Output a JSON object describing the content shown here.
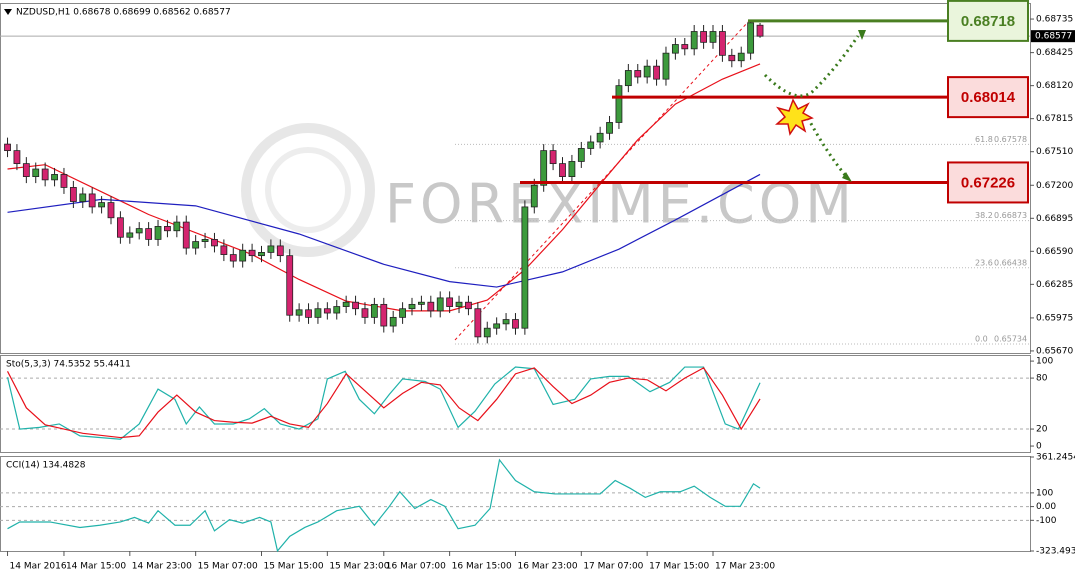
{
  "chart_data": [
    {
      "type": "candlestick",
      "title": "NZDUSD,H1  0.68678 0.68699 0.68562 0.68577",
      "watermark": "FOREXIME.COM",
      "up_color": "#3c9a3c",
      "down_color": "#d4246f",
      "open": [
        0.6758,
        0.6752,
        0.674,
        0.6728,
        0.6735,
        0.6725,
        0.673,
        0.6718,
        0.6705,
        0.6712,
        0.67,
        0.6704,
        0.669,
        0.6672,
        0.6676,
        0.668,
        0.667,
        0.6682,
        0.6678,
        0.6686,
        0.6662,
        0.6668,
        0.667,
        0.6664,
        0.6656,
        0.665,
        0.666,
        0.6655,
        0.6658,
        0.6664,
        0.6655,
        0.66,
        0.6605,
        0.6598,
        0.6606,
        0.6602,
        0.6608,
        0.6612,
        0.6606,
        0.6598,
        0.661,
        0.659,
        0.6598,
        0.6606,
        0.661,
        0.6612,
        0.6604,
        0.6616,
        0.6608,
        0.6612,
        0.6606,
        0.658,
        0.6588,
        0.6592,
        0.6596,
        0.6588,
        0.67,
        0.672,
        0.6752,
        0.674,
        0.6728,
        0.6742,
        0.6754,
        0.676,
        0.6768,
        0.6778,
        0.6812,
        0.6826,
        0.682,
        0.683,
        0.6818,
        0.6842,
        0.685,
        0.6846,
        0.6862,
        0.6852,
        0.6862,
        0.684,
        0.6835,
        0.6842,
        0.68678
      ],
      "high": [
        0.6764,
        0.6758,
        0.6746,
        0.6741,
        0.6741,
        0.6736,
        0.6736,
        0.6724,
        0.6718,
        0.6718,
        0.671,
        0.671,
        0.6696,
        0.6682,
        0.6686,
        0.6686,
        0.6688,
        0.6688,
        0.6692,
        0.6692,
        0.6674,
        0.6676,
        0.6676,
        0.667,
        0.6662,
        0.6666,
        0.6666,
        0.6664,
        0.667,
        0.667,
        0.6661,
        0.6611,
        0.6611,
        0.6612,
        0.6612,
        0.6614,
        0.6618,
        0.6618,
        0.6612,
        0.6616,
        0.6616,
        0.6604,
        0.6612,
        0.6616,
        0.6618,
        0.6618,
        0.6622,
        0.6622,
        0.6618,
        0.6618,
        0.6612,
        0.6594,
        0.6598,
        0.6602,
        0.6602,
        0.6706,
        0.6726,
        0.6758,
        0.6758,
        0.6746,
        0.6748,
        0.676,
        0.6766,
        0.6774,
        0.6784,
        0.6818,
        0.6832,
        0.6832,
        0.6836,
        0.6836,
        0.6848,
        0.6856,
        0.6856,
        0.6868,
        0.6868,
        0.6868,
        0.6868,
        0.6846,
        0.6848,
        0.68718,
        0.68699
      ],
      "low": [
        0.6746,
        0.6734,
        0.6722,
        0.6722,
        0.6719,
        0.6719,
        0.6712,
        0.6699,
        0.6699,
        0.6694,
        0.6694,
        0.6684,
        0.6666,
        0.6666,
        0.667,
        0.6664,
        0.6664,
        0.6672,
        0.6672,
        0.6656,
        0.6656,
        0.6662,
        0.6658,
        0.665,
        0.6644,
        0.6644,
        0.6649,
        0.6649,
        0.6652,
        0.6649,
        0.6594,
        0.6594,
        0.6592,
        0.6592,
        0.6596,
        0.6596,
        0.6602,
        0.66,
        0.6592,
        0.6592,
        0.6584,
        0.6584,
        0.6592,
        0.66,
        0.6604,
        0.6598,
        0.6598,
        0.6602,
        0.6602,
        0.66,
        0.6574,
        0.6574,
        0.6582,
        0.6586,
        0.6582,
        0.6582,
        0.6694,
        0.6714,
        0.6734,
        0.6722,
        0.6722,
        0.6736,
        0.6748,
        0.6754,
        0.6762,
        0.6772,
        0.6806,
        0.6814,
        0.6814,
        0.6812,
        0.6812,
        0.6836,
        0.684,
        0.684,
        0.6846,
        0.6846,
        0.6834,
        0.6829,
        0.6829,
        0.6836,
        0.68562
      ],
      "close": [
        0.6752,
        0.674,
        0.6728,
        0.6735,
        0.6725,
        0.673,
        0.6718,
        0.6705,
        0.6712,
        0.67,
        0.6704,
        0.669,
        0.6672,
        0.6676,
        0.668,
        0.667,
        0.6682,
        0.6678,
        0.6686,
        0.6662,
        0.6668,
        0.667,
        0.6664,
        0.6656,
        0.665,
        0.666,
        0.6655,
        0.6658,
        0.6664,
        0.6655,
        0.66,
        0.6605,
        0.6598,
        0.6606,
        0.6602,
        0.6608,
        0.6612,
        0.6606,
        0.6598,
        0.661,
        0.659,
        0.6598,
        0.6606,
        0.661,
        0.6612,
        0.6604,
        0.6616,
        0.6608,
        0.6612,
        0.6606,
        0.658,
        0.6588,
        0.6592,
        0.6596,
        0.6588,
        0.67,
        0.672,
        0.6752,
        0.674,
        0.6728,
        0.6742,
        0.6754,
        0.676,
        0.6768,
        0.6778,
        0.6812,
        0.6826,
        0.682,
        0.683,
        0.6818,
        0.6842,
        0.685,
        0.6846,
        0.6862,
        0.6852,
        0.6862,
        0.684,
        0.6835,
        0.6842,
        0.687,
        0.68577
      ],
      "lines": [
        {
          "color": "#e8101a",
          "x": [
            0,
            4,
            15,
            26,
            31,
            36,
            42,
            47,
            51,
            55,
            59,
            63,
            67,
            71,
            76,
            80
          ],
          "values": [
            0.6735,
            0.6739,
            0.6693,
            0.6656,
            0.6633,
            0.6613,
            0.6604,
            0.6604,
            0.6614,
            0.6642,
            0.6679,
            0.6721,
            0.6762,
            0.6795,
            0.6818,
            0.6832
          ]
        },
        {
          "color": "#1f1fbf",
          "x": [
            0,
            10,
            20,
            31,
            40,
            47,
            52,
            59,
            65,
            71,
            80
          ],
          "values": [
            0.6695,
            0.6707,
            0.6701,
            0.6675,
            0.6647,
            0.6631,
            0.6626,
            0.664,
            0.6661,
            0.6688,
            0.673
          ]
        }
      ],
      "current_price": 0.68577,
      "levels": [
        {
          "value": 0.68718,
          "color": "#4a7f22",
          "fill": "#eaf5dc"
        },
        {
          "value": 0.68014,
          "color": "#c00000",
          "fill": "#fbdcdc"
        },
        {
          "value": 0.67226,
          "color": "#c00000",
          "fill": "#fbdcdc"
        }
      ],
      "fib": [
        {
          "level": "61.8",
          "value": 0.67578
        },
        {
          "level": "38.2",
          "value": 0.66873
        },
        {
          "level": "23.6",
          "value": 0.66438
        },
        {
          "level": "0.0",
          "value": 0.65734
        }
      ],
      "xlim": [
        -0.8,
        108.7
      ],
      "ylim": [
        0.65651,
        0.68874
      ],
      "yticks": [
        0.68735,
        0.68425,
        {
          "value": 0.6812,
          "label": "0.68120"
        },
        0.67815,
        {
          "value": 0.6751,
          "label": "0.67510"
        },
        {
          "value": 0.672,
          "label": "0.67200"
        },
        0.66895,
        {
          "value": 0.6659,
          "label": "0.66590"
        },
        0.66285,
        0.65975,
        {
          "value": 0.6567,
          "label": "0.65670"
        }
      ],
      "xticks": [
        {
          "value": 0,
          "label": "14 Mar 2016"
        },
        {
          "value": 6,
          "label": "14 Mar 15:00"
        },
        {
          "value": 13,
          "label": "14 Mar 23:00"
        },
        {
          "value": 20,
          "label": "15 Mar 07:00"
        },
        {
          "value": 27,
          "label": "15 Mar 15:00"
        },
        {
          "value": 34,
          "label": "15 Mar 23:00"
        },
        {
          "value": 40,
          "label": "16 Mar 07:00"
        },
        {
          "value": 47,
          "label": "16 Mar 15:00"
        },
        {
          "value": 54,
          "label": "16 Mar 23:00"
        },
        {
          "value": 61,
          "label": "17 Mar 07:00"
        },
        {
          "value": 68,
          "label": "17 Mar 15:00"
        },
        {
          "value": 75,
          "label": "17 Mar 23:00"
        }
      ],
      "grid": false
    },
    {
      "type": "line",
      "title": "Sto(5,3,3) 74.5352 55.4411",
      "xlim": [
        -0.8,
        108.7
      ],
      "ylim": [
        -7,
        106
      ],
      "yticks": [
        100,
        80,
        20,
        0
      ],
      "grid": true,
      "series": [
        {
          "color": "#20b2aa",
          "x": [
            0,
            1.3,
            3.4,
            5.5,
            7.7,
            12,
            14,
            16,
            17.8,
            19,
            20.4,
            22,
            24,
            25.7,
            27.3,
            29,
            31,
            33,
            34,
            35.9,
            37.4,
            39,
            40.6,
            42,
            44.4,
            46,
            47.9,
            49.7,
            51.8,
            54,
            56,
            58,
            60.3,
            62,
            64,
            66,
            68.3,
            70.4,
            72,
            74,
            76.3,
            77.7,
            80
          ],
          "values": [
            81,
            20,
            22,
            26,
            12,
            8,
            26,
            67,
            55,
            26,
            46,
            26,
            26,
            32,
            44,
            26,
            20,
            32,
            79,
            88,
            55,
            38,
            61,
            79,
            76,
            67,
            22,
            41,
            73,
            93,
            91,
            49,
            55,
            79,
            82,
            82,
            64,
            75,
            93,
            93,
            26,
            20,
            74.5352
          ]
        },
        {
          "color": "#e8101a",
          "x": [
            0,
            2,
            4,
            6,
            8,
            12,
            14,
            16,
            18,
            20,
            22,
            24,
            26,
            28,
            30,
            32,
            34,
            36,
            38,
            40,
            42,
            44,
            46,
            48,
            50,
            52,
            54,
            56,
            58,
            60,
            62,
            64,
            66,
            68,
            70,
            72,
            74,
            76,
            78,
            80
          ],
          "values": [
            88,
            45,
            25,
            20,
            15,
            10,
            12,
            40,
            60,
            40,
            30,
            28,
            27,
            35,
            26,
            22,
            50,
            85,
            65,
            45,
            62,
            75,
            72,
            45,
            30,
            55,
            85,
            92,
            70,
            50,
            60,
            75,
            80,
            78,
            65,
            80,
            92,
            60,
            20,
            55.4411
          ]
        }
      ]
    },
    {
      "type": "line",
      "title": "CCI(14) 134.4828",
      "xlim": [
        -0.8,
        108.7
      ],
      "ylim": [
        -323.4935,
        361.2454
      ],
      "yticks": [
        361.2454,
        100,
        {
          "value": 0,
          "label": "0.00"
        },
        -100,
        -323.4935
      ],
      "grid": true,
      "series": [
        {
          "color": "#20b2aa",
          "x": [
            0,
            1.3,
            4.5,
            7.7,
            9.8,
            12,
            13.5,
            15,
            16,
            17.8,
            19.4,
            21,
            22,
            23.6,
            25,
            26.8,
            28,
            28.7,
            30,
            31.6,
            33,
            35,
            37.4,
            39,
            40.6,
            41.7,
            43.3,
            45,
            46.5,
            47.9,
            49.7,
            51.3,
            52.3,
            54,
            56,
            58.2,
            60.3,
            62,
            63,
            64.6,
            66.2,
            67.8,
            69.4,
            71.5,
            73,
            74.7,
            76.3,
            77.9,
            79.3,
            80
          ],
          "values": [
            -161,
            -112,
            -112,
            -152,
            -136,
            -112,
            -79,
            -120,
            -30,
            -136,
            -136,
            -30,
            -177,
            -95,
            -120,
            -79,
            -112,
            -323,
            -217,
            -152,
            -112,
            -30,
            2,
            -136,
            2,
            108,
            -14,
            51,
            2,
            -161,
            -136,
            -14,
            340,
            190,
            108,
            92,
            92,
            92,
            92,
            190,
            133,
            67,
            108,
            108,
            149,
            67,
            2,
            2,
            166,
            134.4828
          ]
        }
      ]
    }
  ]
}
